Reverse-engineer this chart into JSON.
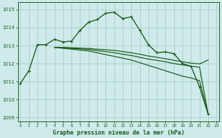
{
  "title": "Graphe pression niveau de la mer (hPa)",
  "bg_color": "#ceeaea",
  "grid_color": "#aacccc",
  "line_color": "#1a5c1a",
  "xlim": [
    -0.3,
    23.3
  ],
  "ylim": [
    1008.8,
    1015.4
  ],
  "yticks": [
    1009,
    1010,
    1011,
    1012,
    1013,
    1014,
    1015
  ],
  "xticks": [
    0,
    1,
    2,
    3,
    4,
    5,
    6,
    7,
    8,
    9,
    10,
    11,
    12,
    13,
    14,
    15,
    16,
    17,
    18,
    19,
    20,
    21,
    22,
    23
  ],
  "series": [
    {
      "x": [
        0,
        1,
        2,
        3,
        4,
        5,
        6,
        7,
        8,
        9,
        10,
        11,
        12,
        13,
        14,
        15,
        16,
        17,
        18,
        19,
        20,
        21,
        22
      ],
      "y": [
        1010.9,
        1011.6,
        1013.05,
        1013.05,
        1013.35,
        1013.2,
        1013.25,
        1013.85,
        1014.3,
        1014.45,
        1014.8,
        1014.85,
        1014.5,
        1014.6,
        1013.85,
        1013.05,
        1012.6,
        1012.65,
        1012.55,
        1012.0,
        1011.85,
        1010.7,
        1009.2
      ],
      "marker": true,
      "linewidth": 1.0
    },
    {
      "x": [
        4,
        5,
        6,
        7,
        8,
        9,
        10,
        11,
        12,
        13,
        14,
        15,
        16,
        17,
        18,
        19,
        20,
        21,
        22
      ],
      "y": [
        1012.9,
        1012.85,
        1012.8,
        1012.75,
        1012.7,
        1012.6,
        1012.5,
        1012.4,
        1012.3,
        1012.2,
        1012.05,
        1011.9,
        1011.75,
        1011.6,
        1011.45,
        1011.3,
        1011.2,
        1011.05,
        1009.2
      ],
      "marker": false,
      "linewidth": 0.9
    },
    {
      "x": [
        4,
        5,
        6,
        7,
        8,
        9,
        10,
        11,
        12,
        13,
        14,
        15,
        16,
        17,
        18,
        19,
        20,
        21,
        22
      ],
      "y": [
        1012.9,
        1012.87,
        1012.84,
        1012.82,
        1012.78,
        1012.72,
        1012.67,
        1012.6,
        1012.52,
        1012.45,
        1012.35,
        1012.25,
        1012.18,
        1012.1,
        1012.0,
        1011.93,
        1011.85,
        1011.8,
        1009.2
      ],
      "marker": false,
      "linewidth": 0.9
    },
    {
      "x": [
        4,
        5,
        6,
        7,
        8,
        9,
        10,
        11,
        12,
        13,
        14,
        15,
        16,
        17,
        18,
        19,
        20,
        21,
        22
      ],
      "y": [
        1012.9,
        1012.9,
        1012.88,
        1012.86,
        1012.84,
        1012.8,
        1012.77,
        1012.73,
        1012.67,
        1012.6,
        1012.52,
        1012.42,
        1012.35,
        1012.27,
        1012.18,
        1012.1,
        1012.03,
        1011.98,
        1012.2
      ],
      "marker": false,
      "linewidth": 0.9
    }
  ]
}
